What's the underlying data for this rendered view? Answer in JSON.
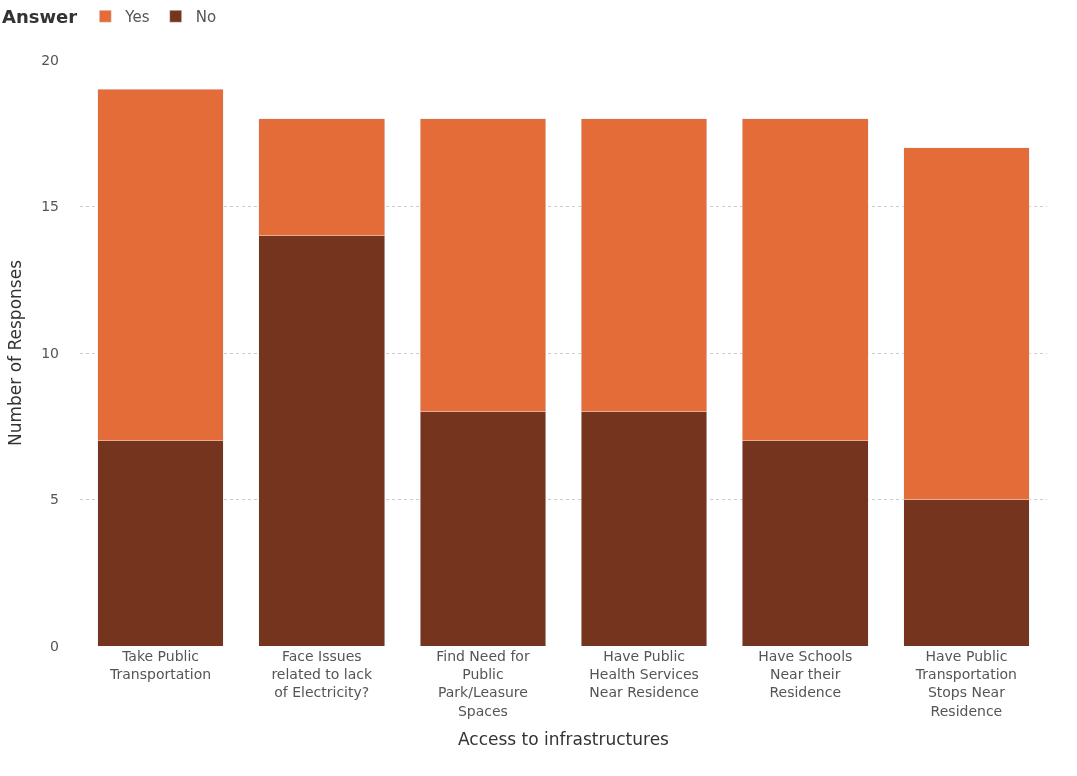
{
  "chart_data": {
    "type": "bar",
    "stacked": true,
    "xlabel": "Access to infrastructures",
    "ylabel": "Number of Responses",
    "legend_title": "Answer",
    "legend": "top left",
    "grid": "y",
    "categories": [
      "Take Public Transportation",
      "Face Issues related to lack of Electricity?",
      "Find Need for Public Park/Leasure Spaces",
      "Have Public Health Services Near Residence",
      "Have Schools Near their Residence",
      "Have Public Transportation Stops Near Residence"
    ],
    "series": [
      {
        "name": "No",
        "color": "#74341e",
        "values": [
          7,
          14,
          8,
          8,
          7,
          5
        ]
      },
      {
        "name": "Yes",
        "color": "#e46c38",
        "values": [
          12,
          4,
          10,
          10,
          11,
          12
        ]
      }
    ],
    "ylim": [
      0,
      20
    ],
    "yticks": [
      0,
      5,
      10,
      15,
      20
    ]
  }
}
